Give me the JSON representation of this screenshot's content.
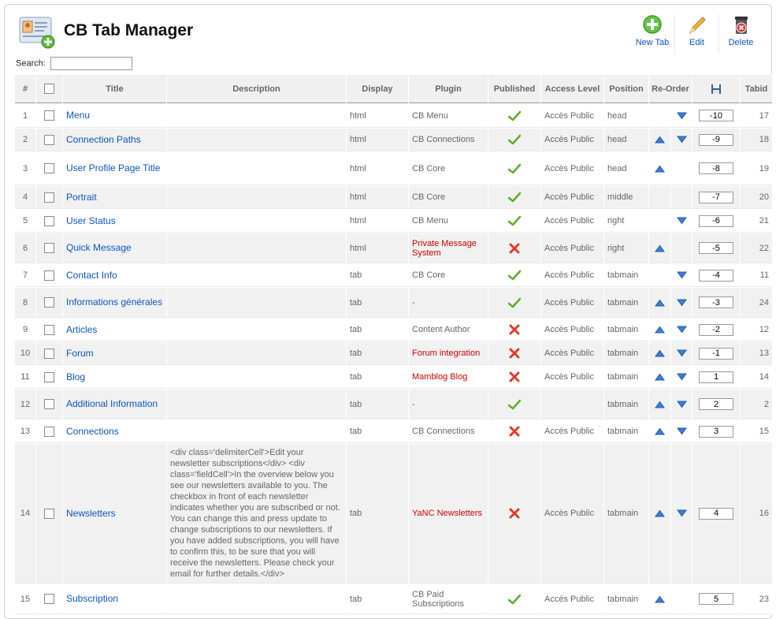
{
  "header": {
    "title": "CB Tab Manager"
  },
  "toolbar": {
    "new_label": "New Tab",
    "edit_label": "Edit",
    "delete_label": "Delete"
  },
  "search": {
    "label": "Search:",
    "value": ""
  },
  "columns": {
    "num": "#",
    "title": "Title",
    "description": "Description",
    "display": "Display",
    "plugin": "Plugin",
    "published": "Published",
    "access": "Access Level",
    "position": "Position",
    "reorder": "Re-Order",
    "order_icon": "save-icon",
    "tabid": "Tabid"
  },
  "colors": {
    "link": "#0b55c4",
    "access": "#2a8d00",
    "plugin_error": "#cc0000",
    "row_alt": "#f1f1f1"
  },
  "rows": [
    {
      "num": "1",
      "title": "Menu",
      "description": "",
      "display": "html",
      "plugin": "CB Menu",
      "plugin_bad": false,
      "published": true,
      "access": "Accès Public",
      "position": "head",
      "up": false,
      "down": true,
      "order": "-10",
      "tabid": "17"
    },
    {
      "num": "2",
      "title": "Connection Paths",
      "description": "",
      "display": "html",
      "plugin": "CB Connections",
      "plugin_bad": false,
      "published": true,
      "access": "Accès Public",
      "position": "head",
      "up": true,
      "down": true,
      "order": "-9",
      "tabid": "18"
    },
    {
      "num": "3",
      "title": "User Profile Page Title",
      "description": "",
      "display": "html",
      "plugin": "CB Core",
      "plugin_bad": false,
      "published": true,
      "access": "Accès Public",
      "position": "head",
      "up": true,
      "down": false,
      "order": "-8",
      "tabid": "19"
    },
    {
      "num": "4",
      "title": "Portrait",
      "description": "",
      "display": "html",
      "plugin": "CB Core",
      "plugin_bad": false,
      "published": true,
      "access": "Accès Public",
      "position": "middle",
      "up": false,
      "down": false,
      "order": "-7",
      "tabid": "20"
    },
    {
      "num": "5",
      "title": "User Status",
      "description": "",
      "display": "html",
      "plugin": "CB Menu",
      "plugin_bad": false,
      "published": true,
      "access": "Accès Public",
      "position": "right",
      "up": false,
      "down": true,
      "order": "-6",
      "tabid": "21"
    },
    {
      "num": "6",
      "title": "Quick Message",
      "description": "",
      "display": "html",
      "plugin": "Private Message System",
      "plugin_bad": true,
      "published": false,
      "access": "Accès Public",
      "position": "right",
      "up": true,
      "down": false,
      "order": "-5",
      "tabid": "22"
    },
    {
      "num": "7",
      "title": "Contact Info",
      "description": "",
      "display": "tab",
      "plugin": "CB Core",
      "plugin_bad": false,
      "published": true,
      "access": "Accès Public",
      "position": "tabmain",
      "up": false,
      "down": true,
      "order": "-4",
      "tabid": "11"
    },
    {
      "num": "8",
      "title": "Informations générales",
      "description": "",
      "display": "tab",
      "plugin": "-",
      "plugin_bad": false,
      "published": true,
      "access": "Accès Public",
      "position": "tabmain",
      "up": true,
      "down": true,
      "order": "-3",
      "tabid": "24"
    },
    {
      "num": "9",
      "title": "Articles",
      "description": "",
      "display": "tab",
      "plugin": "Content Author",
      "plugin_bad": false,
      "published": false,
      "access": "Accès Public",
      "position": "tabmain",
      "up": true,
      "down": true,
      "order": "-2",
      "tabid": "12"
    },
    {
      "num": "10",
      "title": "Forum",
      "description": "",
      "display": "tab",
      "plugin": "Forum integration",
      "plugin_bad": true,
      "published": false,
      "access": "Accès Public",
      "position": "tabmain",
      "up": true,
      "down": true,
      "order": "-1",
      "tabid": "13"
    },
    {
      "num": "11",
      "title": "Blog",
      "description": "",
      "display": "tab",
      "plugin": "Mamblog Blog",
      "plugin_bad": true,
      "published": false,
      "access": "Accès Public",
      "position": "tabmain",
      "up": true,
      "down": true,
      "order": "1",
      "tabid": "14"
    },
    {
      "num": "12",
      "title": "Additional Information",
      "description": "",
      "display": "tab",
      "plugin": "-",
      "plugin_bad": false,
      "published": true,
      "access": "",
      "position": "tabmain",
      "up": true,
      "down": true,
      "order": "2",
      "tabid": "2"
    },
    {
      "num": "13",
      "title": "Connections",
      "description": "",
      "display": "tab",
      "plugin": "CB Connections",
      "plugin_bad": false,
      "published": false,
      "access": "Accès Public",
      "position": "tabmain",
      "up": true,
      "down": true,
      "order": "3",
      "tabid": "15"
    },
    {
      "num": "14",
      "title": "Newsletters",
      "description": "<div class='delimiterCell'>Edit your newsletter subscriptions</div> <div class='fieldCell'>In the overview below you see our newsletters available to you. The checkbox in front of each newsletter indicates whether you are subscribed or not. You can change this and press update to change subscriptions to our newsletters. If you have added subscriptions, you will have to confirm this, to be sure that you will receive the newsletters. Please check your email for further details.</div>",
      "display": "tab",
      "plugin": "YaNC Newsletters",
      "plugin_bad": true,
      "published": false,
      "access": "Accès Public",
      "position": "tabmain",
      "up": true,
      "down": true,
      "order": "4",
      "tabid": "16"
    },
    {
      "num": "15",
      "title": "Subscription",
      "description": "",
      "display": "tab",
      "plugin": "CB Paid Subscriptions",
      "plugin_bad": false,
      "published": true,
      "access": "Accès Public",
      "position": "tabmain",
      "up": true,
      "down": false,
      "order": "5",
      "tabid": "23"
    }
  ]
}
